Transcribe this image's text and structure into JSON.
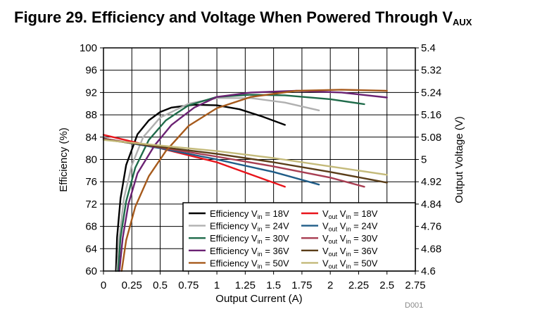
{
  "chart_data": {
    "type": "line",
    "title": "Figure 29. Efficiency and Voltage When Powered Through V",
    "title_subscript": "AUX",
    "xlabel": "Output Current (A)",
    "ylabel": "Efficiency (%)",
    "y2label": "Output Voltage (V)",
    "xlim": [
      0,
      2.75
    ],
    "ylim": [
      60,
      100
    ],
    "y2lim": [
      4.6,
      5.4
    ],
    "x_ticks": [
      "0",
      "0.25",
      "0.5",
      "0.75",
      "1",
      "1.25",
      "1.5",
      "1.75",
      "2",
      "2.25",
      "2.5",
      "2.75"
    ],
    "y_ticks": [
      "60",
      "64",
      "68",
      "72",
      "76",
      "80",
      "84",
      "88",
      "92",
      "96",
      "100"
    ],
    "y2_ticks": [
      "4.6",
      "4.68",
      "4.76",
      "4.84",
      "4.92",
      "5",
      "5.08",
      "5.16",
      "5.24",
      "5.32",
      "5.4"
    ],
    "grid": true,
    "legend_position": "bottom-right",
    "watermark": "D001",
    "series": [
      {
        "name": "Efficiency Vin = 18V",
        "label": "Efficiency V",
        "sub": "in",
        "suffix": " = 18V",
        "axis": "left",
        "color": "#000000",
        "points": [
          [
            0.11,
            60
          ],
          [
            0.12,
            66
          ],
          [
            0.15,
            73
          ],
          [
            0.2,
            79
          ],
          [
            0.3,
            84.5
          ],
          [
            0.4,
            87
          ],
          [
            0.5,
            88.5
          ],
          [
            0.6,
            89.3
          ],
          [
            0.8,
            89.8
          ],
          [
            1.0,
            89.7
          ],
          [
            1.2,
            89
          ],
          [
            1.4,
            87.7
          ],
          [
            1.6,
            86.2
          ]
        ]
      },
      {
        "name": "Vout Vin = 18V",
        "label": "V",
        "sub": "out",
        "mid": " V",
        "sub2": "in",
        "suffix": " = 18V",
        "axis": "right",
        "color": "#e8141b",
        "points": [
          [
            0,
            5.088
          ],
          [
            0.5,
            5.04
          ],
          [
            1.0,
            4.99
          ],
          [
            1.6,
            4.902
          ]
        ]
      },
      {
        "name": "Efficiency Vin = 24V",
        "label": "Efficiency V",
        "sub": "in",
        "suffix": " = 24V",
        "axis": "left",
        "color": "#b0b0b0",
        "points": [
          [
            0.12,
            60
          ],
          [
            0.14,
            66
          ],
          [
            0.18,
            73
          ],
          [
            0.25,
            79
          ],
          [
            0.35,
            84
          ],
          [
            0.5,
            87.5
          ],
          [
            0.75,
            90
          ],
          [
            1.0,
            91
          ],
          [
            1.3,
            91
          ],
          [
            1.6,
            90.2
          ],
          [
            1.9,
            88.8
          ]
        ]
      },
      {
        "name": "Vout Vin = 24V",
        "label": "V",
        "sub": "out",
        "mid": " V",
        "sub2": "in",
        "suffix": " = 24V",
        "axis": "right",
        "color": "#1f5c87",
        "points": [
          [
            0,
            5.075
          ],
          [
            0.5,
            5.04
          ],
          [
            1.0,
            5.0
          ],
          [
            1.5,
            4.955
          ],
          [
            1.9,
            4.91
          ]
        ]
      },
      {
        "name": "Efficiency Vin = 30V",
        "label": "Efficiency V",
        "sub": "in",
        "suffix": " = 30V",
        "axis": "left",
        "color": "#1f6b4a",
        "points": [
          [
            0.13,
            60
          ],
          [
            0.15,
            66
          ],
          [
            0.2,
            72.5
          ],
          [
            0.28,
            78.5
          ],
          [
            0.4,
            83.5
          ],
          [
            0.55,
            87
          ],
          [
            0.75,
            89.7
          ],
          [
            1.0,
            91.2
          ],
          [
            1.3,
            91.6
          ],
          [
            1.6,
            91.5
          ],
          [
            2.0,
            90.8
          ],
          [
            2.3,
            89.9
          ]
        ]
      },
      {
        "name": "Vout Vin = 30V",
        "label": "V",
        "sub": "out",
        "mid": " V",
        "sub2": "in",
        "suffix": " = 30V",
        "axis": "right",
        "color": "#a83e52",
        "points": [
          [
            0,
            5.075
          ],
          [
            0.5,
            5.043
          ],
          [
            1.0,
            5.01
          ],
          [
            1.5,
            4.975
          ],
          [
            2.0,
            4.935
          ],
          [
            2.3,
            4.902
          ]
        ]
      },
      {
        "name": "Efficiency Vin = 36V",
        "label": "Efficiency V",
        "sub": "in",
        "suffix": " = 36V",
        "axis": "left",
        "color": "#6b2273",
        "points": [
          [
            0.14,
            60
          ],
          [
            0.17,
            66
          ],
          [
            0.22,
            72
          ],
          [
            0.3,
            77.5
          ],
          [
            0.45,
            82.5
          ],
          [
            0.6,
            86.2
          ],
          [
            0.8,
            89.3
          ],
          [
            1.0,
            91.2
          ],
          [
            1.3,
            92
          ],
          [
            1.7,
            92.3
          ],
          [
            2.1,
            92
          ],
          [
            2.5,
            91.1
          ]
        ]
      },
      {
        "name": "Vout Vin = 36V",
        "label": "V",
        "sub": "out",
        "mid": " V",
        "sub2": "in",
        "suffix": " = 36V",
        "axis": "right",
        "color": "#5a3d18",
        "points": [
          [
            0,
            5.072
          ],
          [
            0.5,
            5.045
          ],
          [
            1.0,
            5.02
          ],
          [
            1.5,
            4.99
          ],
          [
            2.0,
            4.955
          ],
          [
            2.5,
            4.917
          ]
        ]
      },
      {
        "name": "Efficiency Vin = 50V",
        "label": "Efficiency V",
        "sub": "in",
        "suffix": " = 50V",
        "axis": "left",
        "color": "#a65a1c",
        "points": [
          [
            0.16,
            60
          ],
          [
            0.2,
            65.5
          ],
          [
            0.28,
            71.5
          ],
          [
            0.4,
            77
          ],
          [
            0.55,
            81.5
          ],
          [
            0.75,
            86
          ],
          [
            1.0,
            89.2
          ],
          [
            1.3,
            91.2
          ],
          [
            1.7,
            92.3
          ],
          [
            2.1,
            92.5
          ],
          [
            2.5,
            92.3
          ]
        ]
      },
      {
        "name": "Vout Vin = 50V",
        "label": "V",
        "sub": "out",
        "mid": " V",
        "sub2": "in",
        "suffix": " = 50V",
        "axis": "right",
        "color": "#c4ba7a",
        "points": [
          [
            0,
            5.07
          ],
          [
            0.5,
            5.05
          ],
          [
            1.0,
            5.03
          ],
          [
            1.5,
            5.005
          ],
          [
            2.0,
            4.975
          ],
          [
            2.5,
            4.945
          ]
        ]
      }
    ]
  }
}
